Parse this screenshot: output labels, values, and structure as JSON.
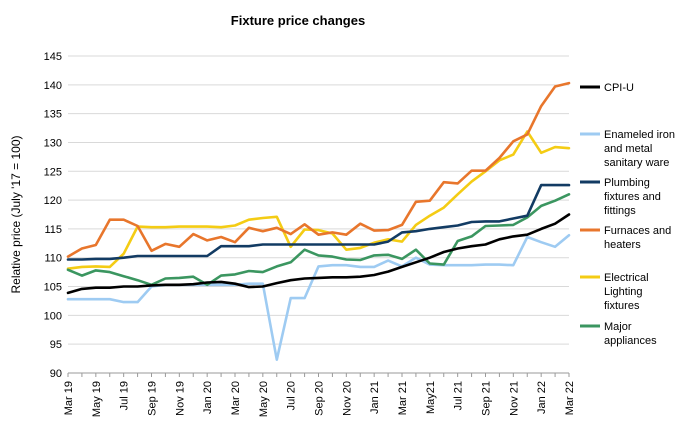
{
  "chart_data": {
    "type": "line",
    "title": "Fixture price changes",
    "ylabel": "Relative price (July '17 = 100)",
    "xlabel": "",
    "ylim": [
      90,
      145
    ],
    "yticks": [
      90,
      95,
      100,
      105,
      110,
      115,
      120,
      125,
      130,
      135,
      140,
      145
    ],
    "grid": "horizontal",
    "legend": "right",
    "x": [
      "Mar 19",
      "Apr 19",
      "May 19",
      "Jun 19",
      "Jul 19",
      "Aug 19",
      "Sep 19",
      "Oct 19",
      "Nov 19",
      "Dec 19",
      "Jan 20",
      "Feb 20",
      "Mar 20",
      "Apr 20",
      "May 20",
      "Jun 20",
      "Jul 20",
      "Aug 20",
      "Sep 20",
      "Oct 20",
      "Nov 20",
      "Dec 20",
      "Jan 21",
      "Feb 21",
      "Mar 21",
      "Apr 21",
      "May 21",
      "Jun 21",
      "Jul 21",
      "Aug 21",
      "Sep 21",
      "Oct 21",
      "Nov 21",
      "Dec 21",
      "Jan 22",
      "Feb 22",
      "Mar 22"
    ],
    "x_tick_labels": [
      "Mar 19",
      "",
      "May 19",
      "",
      "Jul 19",
      "",
      "Sep 19",
      "",
      "Nov 19",
      "",
      "Jan 20",
      "",
      "Mar 20",
      "",
      "May 20",
      "",
      "Jul 20",
      "",
      "Sep 20",
      "",
      "Nov 20",
      "",
      "Jan 21",
      "",
      "Mar 21",
      "",
      "May21",
      "",
      "Jul 21",
      "",
      "Sep 21",
      "",
      "Nov 21",
      "",
      "Jan 22",
      "",
      "Mar 22"
    ],
    "series": [
      {
        "name": "CPI-U",
        "color": "#000000",
        "values": [
          103.9,
          104.6,
          104.8,
          104.8,
          105.0,
          105.0,
          105.2,
          105.3,
          105.3,
          105.4,
          105.7,
          105.8,
          105.5,
          104.9,
          105.0,
          105.6,
          106.1,
          106.4,
          106.5,
          106.6,
          106.6,
          106.7,
          107.0,
          107.6,
          108.4,
          109.2,
          110.0,
          111.0,
          111.6,
          112.0,
          112.3,
          113.2,
          113.7,
          114.0,
          115.0,
          115.9,
          117.5
        ]
      },
      {
        "name": "Enameled iron and metal sanitary ware",
        "color": "#9ecbf2",
        "values": [
          102.8,
          102.8,
          102.8,
          102.8,
          102.3,
          102.3,
          105.0,
          105.3,
          105.3,
          105.3,
          105.3,
          105.3,
          105.3,
          105.5,
          105.5,
          92.3,
          103.0,
          103.0,
          108.5,
          108.7,
          108.7,
          108.4,
          108.4,
          109.5,
          108.5,
          110.0,
          108.8,
          108.7,
          108.7,
          108.7,
          108.8,
          108.8,
          108.7,
          113.6,
          112.7,
          111.9,
          113.9
        ]
      },
      {
        "name": "Plumbing fixtures and fittings",
        "color": "#123b63",
        "values": [
          109.7,
          109.7,
          109.8,
          109.8,
          110.0,
          110.3,
          110.3,
          110.3,
          110.3,
          110.3,
          110.3,
          112.0,
          112.0,
          112.0,
          112.3,
          112.3,
          112.3,
          112.3,
          112.3,
          112.3,
          112.3,
          112.3,
          112.3,
          112.8,
          114.4,
          114.6,
          115.0,
          115.3,
          115.6,
          116.2,
          116.3,
          116.3,
          116.8,
          117.3,
          122.6,
          122.6,
          122.6
        ]
      },
      {
        "name": "Furnaces and heaters",
        "color": "#e8762c",
        "values": [
          110.2,
          111.6,
          112.2,
          116.6,
          116.6,
          115.5,
          111.2,
          112.4,
          111.9,
          114.1,
          113.0,
          113.6,
          112.7,
          115.2,
          114.6,
          115.2,
          114.1,
          115.8,
          114.0,
          114.4,
          114.0,
          115.9,
          114.7,
          114.8,
          115.7,
          119.7,
          119.9,
          123.1,
          122.9,
          125.1,
          125.1,
          127.3,
          130.2,
          131.4,
          136.3,
          139.7,
          140.3
        ]
      },
      {
        "name": "Electrical Lighting fixtures",
        "color": "#f4cc14",
        "values": [
          108.1,
          108.4,
          108.5,
          108.4,
          110.7,
          115.4,
          115.3,
          115.3,
          115.4,
          115.4,
          115.4,
          115.3,
          115.6,
          116.6,
          116.9,
          117.1,
          111.9,
          114.9,
          114.8,
          114.2,
          111.4,
          111.7,
          112.6,
          113.2,
          112.8,
          115.7,
          117.3,
          118.7,
          121.0,
          123.2,
          125.0,
          126.9,
          127.9,
          131.9,
          128.2,
          129.2,
          129.0
        ]
      },
      {
        "name": "Major appliances",
        "color": "#3b9660",
        "values": [
          107.9,
          106.9,
          107.8,
          107.5,
          106.8,
          106.1,
          105.3,
          106.4,
          106.5,
          106.7,
          105.3,
          106.9,
          107.1,
          107.7,
          107.5,
          108.5,
          109.2,
          111.4,
          110.4,
          110.2,
          109.7,
          109.6,
          110.4,
          110.5,
          109.8,
          111.4,
          109.0,
          108.8,
          112.9,
          113.7,
          115.5,
          115.6,
          115.7,
          117.0,
          119.0,
          119.9,
          121.0
        ]
      }
    ]
  }
}
